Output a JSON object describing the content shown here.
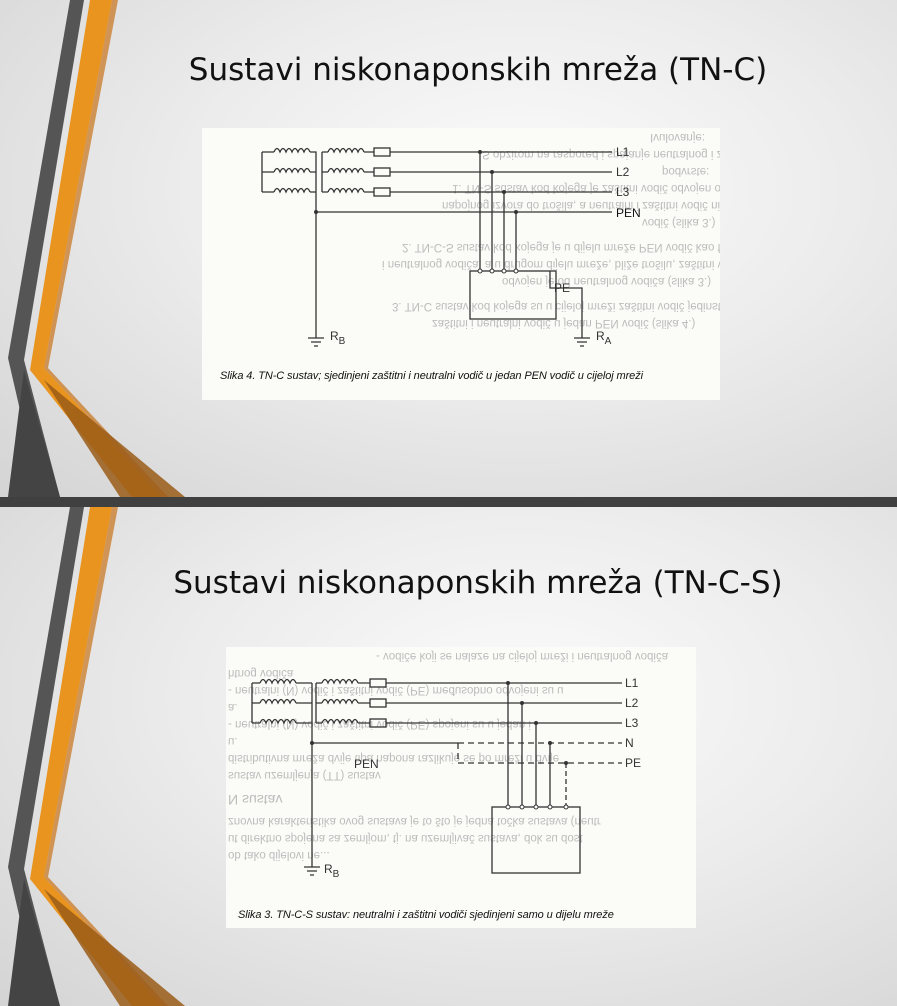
{
  "slides": [
    {
      "title": "Sustavi niskonaponskih mreža (TN-C)",
      "figure": {
        "labels": {
          "l1": "L1",
          "l2": "L2",
          "l3": "L3",
          "pen": "PEN",
          "pe": "PE",
          "rb": "R",
          "rb_sub": "B",
          "ra": "R",
          "ra_sub": "A"
        },
        "caption": "Slika 4. TN-C sustav; sjedinjeni zaštitni i neutralni vodič u jedan PEN vodič u cijeloj mreži",
        "bleed_through": [
          "Ivulovanje:",
          "S obzirom na raspored i spajanje neutralnog i zaštitnog vodiča postoje tri",
          "podvrste:",
          "1. TN-S sustav kod kojega je zaštitni vodič odvojen od neutralnog vodiča od",
          "napojnog izvora do trošila, a neutralni i zaštitni vodič nisu spojeni",
          "vodič (slika 3.)",
          "2. TN-C-S sustav kod kojega je u dijelu mreže PEN vodič kao funkcija zaštitnog",
          "i neutralnog vodiča, a u drugom dijelu mreže, bliže trošilu, zaštitni vodič",
          "odvojen je od neutralnog vodiča (slika 3.)",
          "3. TN-C sustav kod kojega su u cijeloj mreži zaštitni vodič jedinstven",
          "zaštitni i neutralni vodič u jedan PEN vodič (slika 4.)"
        ]
      }
    },
    {
      "title": "Sustavi niskonaponskih mreža (TN-C-S)",
      "figure": {
        "labels": {
          "l1": "L1",
          "l2": "L2",
          "l3": "L3",
          "n": "N",
          "pe": "PE",
          "pen": "PEN",
          "rb": "R",
          "rb_sub": "B"
        },
        "caption": "Slika 3. TN-C-S sustav: neutralni i zaštitni vodiči sjedinjeni samo u dijelu mreže",
        "bleed_through": [
          "- vodiče koji se nalaze na cijeloj mreži i neutralnog vodiča",
          "htnog vodiča",
          "- neutralni (N) vodič i zaštitni vodič (PE) međusobno odvojeni su u",
          "a.",
          "- neutralni (N) vodič i zaštitni vodič (PE) spojeni su u jedan i",
          "u.",
          "distributivna mreža dvije tipa napona razlikuje se po mreži u dvije",
          "sustav uzemljenja (TT) sustav",
          "",
          "N sustav",
          "znovna karakteristika ovog sustava je to što je jedna točka sustava (neutr",
          "ut direktno spojena sa zemljom, tj. na uzemljivač sustava, dok su dost",
          "ob tako dijelovi ne..."
        ]
      }
    }
  ]
}
